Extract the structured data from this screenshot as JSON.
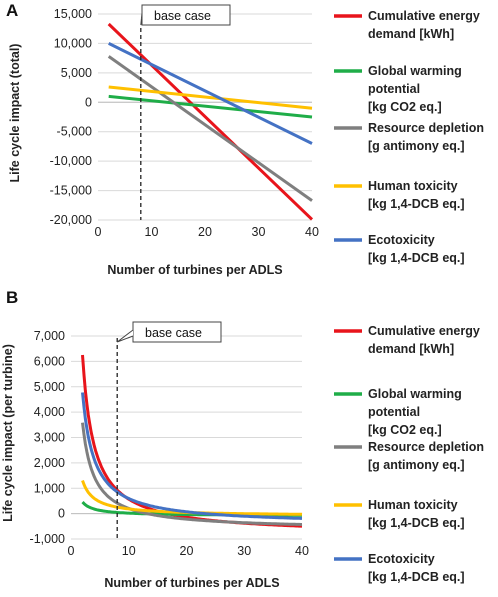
{
  "colors": {
    "cumulative_energy": "#e8141b",
    "global_warming": "#1fad48",
    "resource_depletion": "#7f7f7f",
    "human_toxicity": "#ffc000",
    "ecotoxicity": "#4472c4"
  },
  "chart_data": [
    {
      "panel": "A",
      "type": "line",
      "xlabel": "Number of turbines per ADLS",
      "ylabel": "Life cycle impact (total)",
      "xlim": [
        0,
        40
      ],
      "ylim": [
        -20000,
        15000
      ],
      "x_ticks": [
        "0",
        "10",
        "20",
        "30",
        "40"
      ],
      "y_ticks": [
        "-20,000",
        "-15,000",
        "-10,000",
        "-5,000",
        "0",
        "5,000",
        "10,000",
        "15,000"
      ],
      "y_tick_values": [
        -20000,
        -15000,
        -10000,
        -5000,
        0,
        5000,
        10000,
        15000
      ],
      "x_tick_values": [
        0,
        10,
        20,
        30,
        40
      ],
      "annotation": {
        "label": "base case",
        "x": 8
      },
      "series": [
        {
          "name": "Cumulative energy demand [kWh]",
          "key": "cumulative_energy",
          "x": [
            2,
            40
          ],
          "y": [
            13300,
            -19900
          ]
        },
        {
          "name": "Global warming potential [kg CO2 eq.]",
          "key": "global_warming",
          "x": [
            2,
            40
          ],
          "y": [
            1000,
            -2500
          ]
        },
        {
          "name": "Resource depletion [g antimony eq.]",
          "key": "resource_depletion",
          "x": [
            2,
            40
          ],
          "y": [
            7800,
            -16700
          ]
        },
        {
          "name": "Human toxicity [kg 1,4-DCB eq.]",
          "key": "human_toxicity",
          "x": [
            2,
            40
          ],
          "y": [
            2600,
            -1000
          ]
        },
        {
          "name": "Ecotoxicity [kg 1,4-DCB eq.]",
          "key": "ecotoxicity",
          "x": [
            2,
            40
          ],
          "y": [
            10000,
            -7000
          ]
        }
      ]
    },
    {
      "panel": "B",
      "type": "line",
      "xlabel": "Number of turbines per ADLS",
      "ylabel": "Life cycle impact (per turbine)",
      "xlim": [
        0,
        40
      ],
      "ylim": [
        -1000,
        7000
      ],
      "x_ticks": [
        "0",
        "10",
        "20",
        "30",
        "40"
      ],
      "y_ticks": [
        "-1,000",
        "0",
        "1,000",
        "2,000",
        "3,000",
        "4,000",
        "5,000",
        "6,000",
        "7,000"
      ],
      "y_tick_values": [
        -1000,
        0,
        1000,
        2000,
        3000,
        4000,
        5000,
        6000,
        7000
      ],
      "x_tick_values": [
        0,
        10,
        20,
        30,
        40
      ],
      "annotation": {
        "label": "base case",
        "x": 8
      },
      "series": [
        {
          "name": "Cumulative energy demand [kWh]",
          "key": "cumulative_energy",
          "a": 14200,
          "b": -850
        },
        {
          "name": "Global warming potential [kg CO2 eq.]",
          "key": "global_warming",
          "a": 1090,
          "b": -90
        },
        {
          "name": "Resource depletion [g antimony eq.]",
          "key": "resource_depletion",
          "a": 8450,
          "b": -640
        },
        {
          "name": "Human toxicity [kg 1,4-DCB eq.]",
          "key": "human_toxicity",
          "a": 2800,
          "b": -95
        },
        {
          "name": "Ecotoxicity [kg 1,4-DCB eq.]",
          "key": "ecotoxicity",
          "a": 10450,
          "b": -450
        }
      ]
    }
  ],
  "legend_lines": {
    "cumulative_energy": [
      "Cumulative energy",
      "demand [kWh]"
    ],
    "global_warming_A": [
      "Global warming",
      "potential",
      "[kg CO2 eq.]"
    ],
    "resource_depletion": [
      "Resource depletion",
      "[g antimony eq.]"
    ],
    "human_toxicity": [
      "Human toxicity",
      "[kg 1,4-DCB eq.]"
    ],
    "ecotoxicity": [
      "Ecotoxicity",
      "[kg 1,4-DCB eq.]"
    ]
  }
}
